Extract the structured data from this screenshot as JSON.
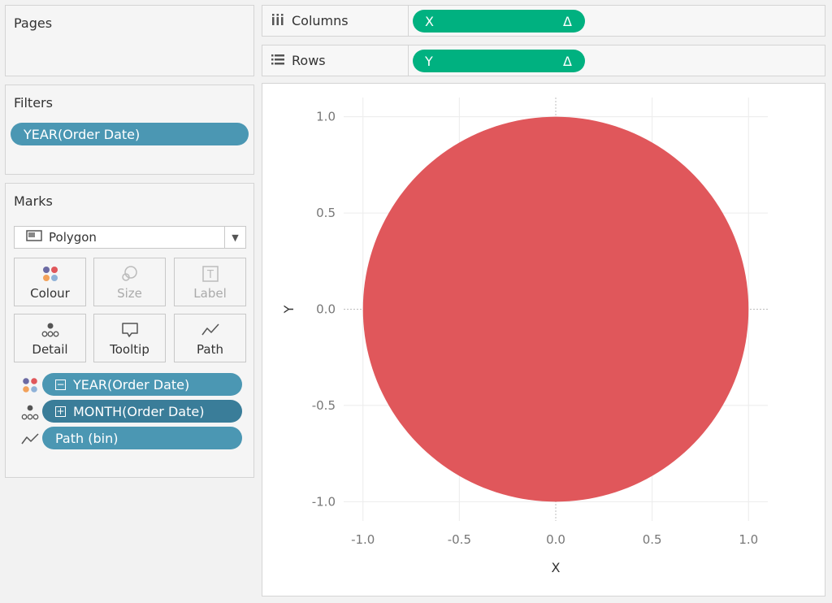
{
  "pages": {
    "title": "Pages"
  },
  "filters": {
    "title": "Filters",
    "pills": [
      {
        "label": "YEAR(Order Date)"
      }
    ]
  },
  "marks": {
    "title": "Marks",
    "mark_type": {
      "label": "Polygon",
      "icon": "polygon-icon"
    },
    "buttons": [
      {
        "label": "Colour",
        "icon": "colour-icon",
        "enabled": true
      },
      {
        "label": "Size",
        "icon": "size-icon",
        "enabled": false
      },
      {
        "label": "Label",
        "icon": "label-icon",
        "enabled": false
      },
      {
        "label": "Detail",
        "icon": "detail-icon",
        "enabled": true
      },
      {
        "label": "Tooltip",
        "icon": "tooltip-icon",
        "enabled": true
      },
      {
        "label": "Path",
        "icon": "path-icon",
        "enabled": true
      }
    ],
    "fields": [
      {
        "label": "YEAR(Order Date)",
        "encoding_icon": "colour-icon",
        "sign": "−"
      },
      {
        "label": "MONTH(Order Date)",
        "encoding_icon": "detail-icon",
        "sign": "+"
      },
      {
        "label": "Path (bin)",
        "encoding_icon": "path-icon",
        "sign": ""
      }
    ]
  },
  "shelves": {
    "columns": {
      "label": "Columns",
      "icon": "columns-icon",
      "pill": {
        "label": "X",
        "badge": "Δ"
      }
    },
    "rows": {
      "label": "Rows",
      "icon": "rows-icon",
      "pill": {
        "label": "Y",
        "badge": "Δ"
      }
    }
  },
  "colors": {
    "filter_pill": "#4b97b3",
    "dimension_pill": "#4b97b3",
    "detail_pill": "#3a7d99",
    "measure_pill": "#00b180",
    "polygon_fill": "#e0575b"
  },
  "chart_data": {
    "type": "polygon",
    "shape": "circle",
    "center": [
      0.0,
      0.0
    ],
    "radius": 1.0,
    "xlabel": "X",
    "ylabel": "Y",
    "xlim": [
      -1.1,
      1.1
    ],
    "ylim": [
      -1.1,
      1.1
    ],
    "xticks": [
      "-1.0",
      "-0.5",
      "0.0",
      "0.5",
      "1.0"
    ],
    "yticks": [
      "1.0",
      "0.5",
      "0.0",
      "-0.5",
      "-1.0"
    ],
    "xtick_values": [
      -1.0,
      -0.5,
      0.0,
      0.5,
      1.0
    ],
    "ytick_values": [
      1.0,
      0.5,
      0.0,
      -0.5,
      -1.0
    ],
    "grid": true,
    "zero_lines": true,
    "fill_color": "#e0575b"
  }
}
